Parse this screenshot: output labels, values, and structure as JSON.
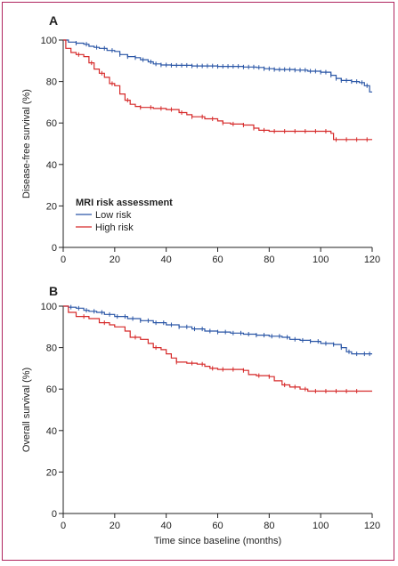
{
  "chart_data": [
    {
      "type": "line",
      "panel_label": "A",
      "ylabel": "Disease-free survival (%)",
      "xlabel": "",
      "xlim": [
        0,
        120
      ],
      "ylim": [
        0,
        100
      ],
      "xticks": [
        0,
        20,
        40,
        60,
        80,
        100,
        120
      ],
      "yticks": [
        0,
        20,
        40,
        60,
        80,
        100
      ],
      "legend": {
        "title": "MRI risk assessment",
        "placement": "lower-left",
        "entries": [
          "Low risk",
          "High risk"
        ]
      },
      "series": [
        {
          "name": "Low risk",
          "color": "#2a56a6",
          "points": [
            [
              0,
              100
            ],
            [
              2,
              99
            ],
            [
              5,
              98.5
            ],
            [
              8,
              98
            ],
            [
              10,
              97
            ],
            [
              12,
              96.5
            ],
            [
              14,
              96
            ],
            [
              17,
              95
            ],
            [
              20,
              94.5
            ],
            [
              22,
              93
            ],
            [
              25,
              92
            ],
            [
              28,
              91.5
            ],
            [
              30,
              90.5
            ],
            [
              33,
              89.5
            ],
            [
              35,
              88.5
            ],
            [
              38,
              88
            ],
            [
              42,
              87.8
            ],
            [
              50,
              87.5
            ],
            [
              60,
              87.3
            ],
            [
              70,
              87
            ],
            [
              75,
              86.8
            ],
            [
              78,
              86.2
            ],
            [
              82,
              85.8
            ],
            [
              90,
              85.5
            ],
            [
              95,
              85
            ],
            [
              100,
              84.5
            ],
            [
              104,
              83
            ],
            [
              106,
              81.5
            ],
            [
              108,
              80.5
            ],
            [
              112,
              80
            ],
            [
              115,
              79.5
            ],
            [
              117,
              78
            ],
            [
              119,
              75
            ],
            [
              120,
              75
            ]
          ],
          "censor_x": [
            5,
            9,
            13,
            16,
            19,
            22,
            25,
            28,
            31,
            34,
            36,
            38,
            40,
            42,
            44,
            46,
            48,
            50,
            52,
            54,
            56,
            58,
            60,
            62,
            64,
            66,
            68,
            70,
            72,
            74,
            76,
            78,
            80,
            82,
            84,
            86,
            88,
            90,
            92,
            94,
            96,
            98,
            100,
            102,
            104,
            106,
            108,
            110,
            112,
            114,
            116,
            118
          ]
        },
        {
          "name": "High risk",
          "color": "#d62a2a",
          "points": [
            [
              0,
              100
            ],
            [
              1,
              96
            ],
            [
              3,
              94
            ],
            [
              5,
              93
            ],
            [
              8,
              92
            ],
            [
              10,
              89
            ],
            [
              12,
              86
            ],
            [
              14,
              84
            ],
            [
              16,
              82
            ],
            [
              18,
              79
            ],
            [
              20,
              78
            ],
            [
              22,
              74
            ],
            [
              24,
              71
            ],
            [
              26,
              69
            ],
            [
              28,
              68
            ],
            [
              30,
              67.5
            ],
            [
              35,
              67
            ],
            [
              40,
              66.5
            ],
            [
              45,
              65
            ],
            [
              48,
              64
            ],
            [
              50,
              63
            ],
            [
              55,
              62
            ],
            [
              60,
              61
            ],
            [
              62,
              60
            ],
            [
              65,
              59.5
            ],
            [
              70,
              59
            ],
            [
              74,
              57.5
            ],
            [
              76,
              56.5
            ],
            [
              80,
              56
            ],
            [
              90,
              56
            ],
            [
              100,
              56
            ],
            [
              104,
              55
            ],
            [
              105,
              52
            ],
            [
              110,
              52
            ],
            [
              120,
              52
            ]
          ],
          "censor_x": [
            6,
            11,
            15,
            19,
            25,
            30,
            34,
            38,
            42,
            46,
            50,
            54,
            58,
            62,
            66,
            70,
            74,
            78,
            82,
            86,
            90,
            94,
            98,
            102,
            106,
            110,
            114,
            118
          ]
        }
      ]
    },
    {
      "type": "line",
      "panel_label": "B",
      "ylabel": "Overall survival (%)",
      "xlabel": "Time since baseline (months)",
      "xlim": [
        0,
        120
      ],
      "ylim": [
        0,
        100
      ],
      "xticks": [
        0,
        20,
        40,
        60,
        80,
        100,
        120
      ],
      "yticks": [
        0,
        20,
        40,
        60,
        80,
        100
      ],
      "series": [
        {
          "name": "Low risk",
          "color": "#2a56a6",
          "points": [
            [
              0,
              100
            ],
            [
              2,
              99.5
            ],
            [
              5,
              99
            ],
            [
              8,
              98
            ],
            [
              10,
              97.5
            ],
            [
              13,
              97
            ],
            [
              16,
              96
            ],
            [
              20,
              95
            ],
            [
              25,
              94
            ],
            [
              30,
              93
            ],
            [
              35,
              92
            ],
            [
              40,
              91
            ],
            [
              45,
              90
            ],
            [
              50,
              89
            ],
            [
              55,
              88
            ],
            [
              60,
              87.5
            ],
            [
              65,
              87
            ],
            [
              70,
              86.5
            ],
            [
              75,
              86
            ],
            [
              80,
              85.5
            ],
            [
              85,
              85
            ],
            [
              88,
              84
            ],
            [
              92,
              83.5
            ],
            [
              96,
              83
            ],
            [
              100,
              82
            ],
            [
              105,
              81.5
            ],
            [
              108,
              80
            ],
            [
              110,
              78
            ],
            [
              112,
              77
            ],
            [
              120,
              77
            ]
          ],
          "censor_x": [
            3,
            6,
            9,
            12,
            15,
            18,
            21,
            24,
            27,
            30,
            33,
            36,
            39,
            42,
            45,
            48,
            51,
            54,
            57,
            60,
            63,
            66,
            69,
            72,
            75,
            78,
            81,
            84,
            87,
            90,
            93,
            96,
            99,
            102,
            105,
            108,
            111,
            114,
            117,
            119
          ]
        },
        {
          "name": "High risk",
          "color": "#d62a2a",
          "points": [
            [
              0,
              100
            ],
            [
              2,
              97
            ],
            [
              5,
              95
            ],
            [
              10,
              94
            ],
            [
              14,
              92
            ],
            [
              18,
              91
            ],
            [
              20,
              90
            ],
            [
              24,
              88
            ],
            [
              26,
              85
            ],
            [
              30,
              84
            ],
            [
              33,
              82
            ],
            [
              35,
              80
            ],
            [
              38,
              79
            ],
            [
              40,
              77
            ],
            [
              42,
              75
            ],
            [
              44,
              73
            ],
            [
              48,
              72.5
            ],
            [
              52,
              72
            ],
            [
              55,
              71
            ],
            [
              57,
              70
            ],
            [
              60,
              69.5
            ],
            [
              70,
              69
            ],
            [
              72,
              67
            ],
            [
              75,
              66.5
            ],
            [
              80,
              66
            ],
            [
              82,
              64
            ],
            [
              85,
              62
            ],
            [
              88,
              61
            ],
            [
              92,
              60
            ],
            [
              95,
              59
            ],
            [
              100,
              59
            ],
            [
              110,
              59
            ],
            [
              120,
              59
            ]
          ],
          "censor_x": [
            8,
            16,
            28,
            36,
            44,
            50,
            54,
            58,
            62,
            66,
            70,
            76,
            80,
            86,
            90,
            94,
            98,
            102,
            106,
            110,
            114
          ]
        }
      ]
    }
  ]
}
